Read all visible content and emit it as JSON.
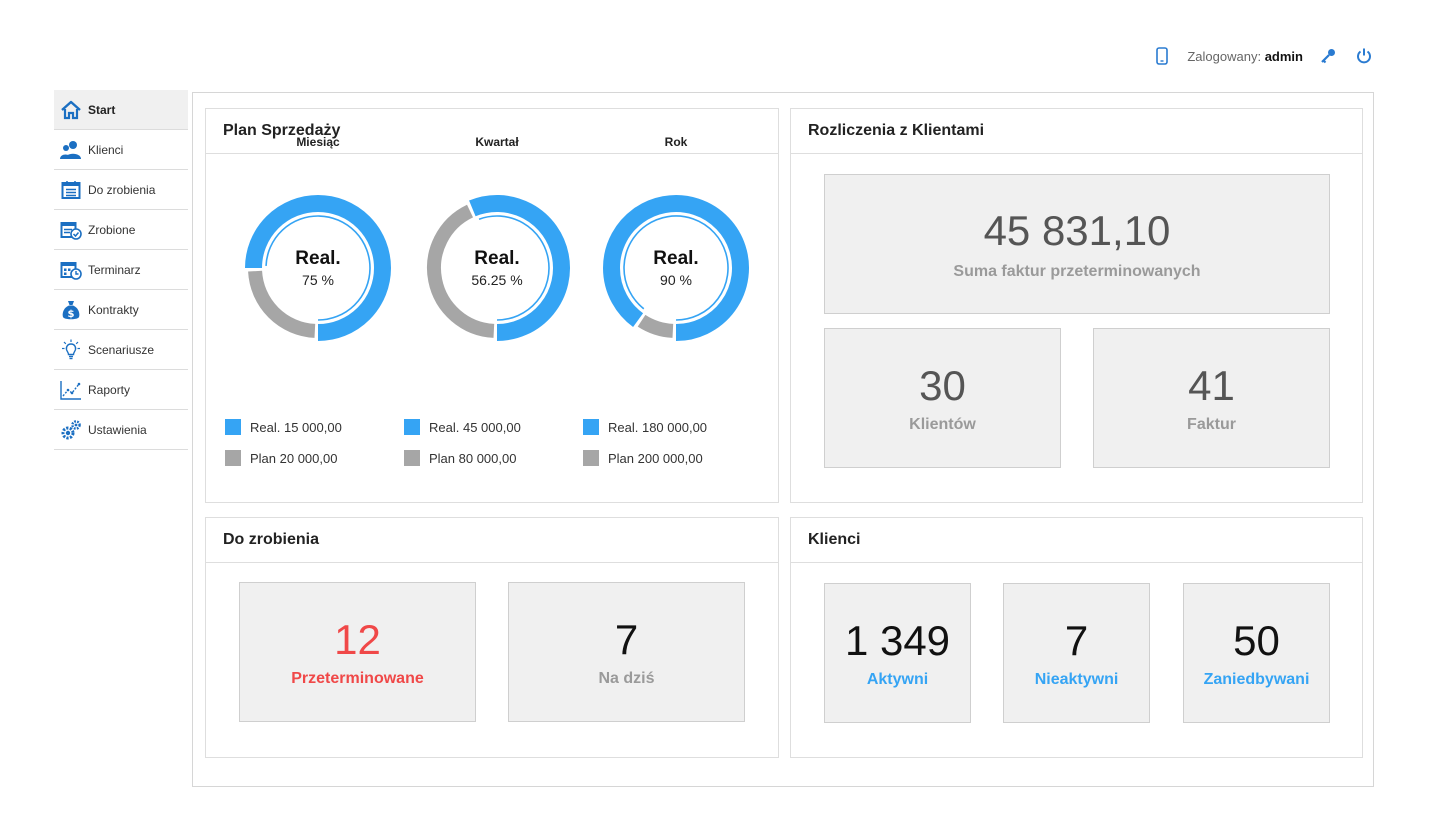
{
  "topbar": {
    "logged_label": "Zalogowany:",
    "username": "admin"
  },
  "sidebar": {
    "items": [
      {
        "label": "Start",
        "icon": "home-icon",
        "active": true
      },
      {
        "label": "Klienci",
        "icon": "users-icon"
      },
      {
        "label": "Do zrobienia",
        "icon": "todo-list-icon"
      },
      {
        "label": "Zrobione",
        "icon": "done-list-icon"
      },
      {
        "label": "Terminarz",
        "icon": "calendar-icon"
      },
      {
        "label": "Kontrakty",
        "icon": "money-bag-icon"
      },
      {
        "label": "Scenariusze",
        "icon": "lightbulb-icon"
      },
      {
        "label": "Raporty",
        "icon": "chart-icon"
      },
      {
        "label": "Ustawienia",
        "icon": "gears-icon"
      }
    ]
  },
  "plan": {
    "title": "Plan Sprzedaży",
    "columns": [
      {
        "title": "Miesiąc",
        "center_label": "Real.",
        "percent": "75 %",
        "fraction": 0.75,
        "real": "Real. 15 000,00",
        "plan": "Plan 20 000,00"
      },
      {
        "title": "Kwartał",
        "center_label": "Real.",
        "percent": "56.25 %",
        "fraction": 0.5625,
        "real": "Real. 45 000,00",
        "plan": "Plan 80 000,00"
      },
      {
        "title": "Rok",
        "center_label": "Real.",
        "percent": "90 %",
        "fraction": 0.9,
        "real": "Real. 180 000,00",
        "plan": "Plan 200 000,00"
      }
    ],
    "colors": {
      "real": "#35a4f4",
      "plan": "#a6a6a6"
    }
  },
  "rozliczenia": {
    "title": "Rozliczenia z Klientami",
    "sum_value": "45 831,10",
    "sum_label": "Suma faktur przeterminowanych",
    "clients_value": "30",
    "clients_label": "Klientów",
    "invoices_value": "41",
    "invoices_label": "Faktur"
  },
  "todo": {
    "title": "Do zrobienia",
    "overdue_value": "12",
    "overdue_label": "Przeterminowane",
    "today_value": "7",
    "today_label": "Na dziś",
    "overdue_color": "#f04848"
  },
  "klienci": {
    "title": "Klienci",
    "active_value": "1 349",
    "active_label": "Aktywni",
    "inactive_value": "7",
    "inactive_label": "Nieaktywni",
    "neglected_value": "50",
    "neglected_label": "Zaniedbywani",
    "label_color": "#35a4f4"
  }
}
